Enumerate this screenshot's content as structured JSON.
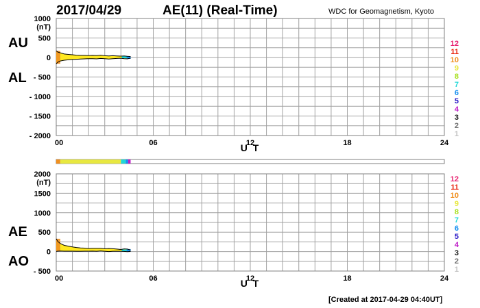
{
  "header": {
    "date": "2017/04/29",
    "index_title": "AE(11) (Real-Time)",
    "source": "WDC for Geomagnetism, Kyoto"
  },
  "footer": {
    "created": "[Created at 2017-04-29 04:40UT]"
  },
  "colors": {
    "level_12": "#e8206e",
    "level_11": "#e8200a",
    "level_10": "#f09020",
    "level_9": "#e8e840",
    "level_8": "#a8e020",
    "level_7": "#20d8d8",
    "level_6": "#1890f0",
    "level_5": "#3020c8",
    "level_4": "#c020c8",
    "level_3": "#202020",
    "level_2": "#707070",
    "level_1": "#c0c0c0",
    "fill": "#ffe820",
    "grid": "#a0a0a0"
  },
  "chart_data": [
    {
      "type": "area",
      "name": "AU/AL",
      "side_labels": [
        "AU",
        "AL"
      ],
      "ylabel": "(nT)",
      "xlabel": "U T",
      "xlim": [
        0,
        24
      ],
      "ylim": [
        -2000,
        1000
      ],
      "x_ticks": [
        "00",
        "06",
        "12",
        "18",
        "24"
      ],
      "y_ticks": [
        "1000",
        "500",
        "0",
        "- 500",
        "- 1000",
        "- 1500",
        "- 2000"
      ],
      "y_tick_values": [
        1000,
        500,
        0,
        -500,
        -1000,
        -1500,
        -2000
      ],
      "grid": true,
      "x": [
        0,
        0.1,
        0.25,
        0.5,
        0.75,
        1.0,
        1.25,
        1.5,
        1.75,
        2.0,
        2.25,
        2.5,
        2.75,
        3.0,
        3.25,
        3.5,
        3.75,
        4.0,
        4.2,
        4.4,
        4.6
      ],
      "series": [
        {
          "name": "AU",
          "values": [
            170,
            140,
            120,
            90,
            80,
            70,
            60,
            55,
            55,
            50,
            55,
            50,
            60,
            45,
            40,
            45,
            40,
            35,
            40,
            30,
            25
          ]
        },
        {
          "name": "AL",
          "values": [
            -160,
            -120,
            -90,
            -70,
            -60,
            -50,
            -45,
            -40,
            -35,
            -30,
            -30,
            -35,
            -25,
            -30,
            -40,
            -30,
            -25,
            -20,
            -30,
            -35,
            -15
          ]
        }
      ],
      "level_bar": [
        {
          "start": 0,
          "end": 0.25,
          "level": 10
        },
        {
          "start": 0.25,
          "end": 4.0,
          "level": 9
        },
        {
          "start": 4.0,
          "end": 4.3,
          "level": 7
        },
        {
          "start": 4.3,
          "end": 4.45,
          "level": 6
        },
        {
          "start": 4.45,
          "end": 4.6,
          "level": 4
        }
      ],
      "legend": [
        "12",
        "11",
        "10",
        "9",
        "8",
        "7",
        "6",
        "5",
        "4",
        "3",
        "2",
        "1"
      ]
    },
    {
      "type": "area",
      "name": "AE/AO",
      "side_labels": [
        "AE",
        "AO"
      ],
      "ylabel": "(nT)",
      "xlabel": "U T",
      "xlim": [
        0,
        24
      ],
      "ylim": [
        -500,
        2000
      ],
      "x_ticks": [
        "00",
        "06",
        "12",
        "18",
        "24"
      ],
      "y_ticks": [
        "2000",
        "1500",
        "1000",
        "500",
        "0",
        "- 500"
      ],
      "y_tick_values": [
        2000,
        1500,
        1000,
        500,
        0,
        -500
      ],
      "grid": true,
      "x": [
        0,
        0.1,
        0.25,
        0.5,
        0.75,
        1.0,
        1.25,
        1.5,
        1.75,
        2.0,
        2.25,
        2.5,
        2.75,
        3.0,
        3.25,
        3.5,
        3.75,
        4.0,
        4.2,
        4.4,
        4.6
      ],
      "series": [
        {
          "name": "AE",
          "values": [
            330,
            260,
            210,
            160,
            140,
            120,
            105,
            95,
            90,
            80,
            85,
            85,
            85,
            75,
            80,
            75,
            65,
            55,
            70,
            65,
            40
          ]
        },
        {
          "name": "AO",
          "values": [
            5,
            10,
            15,
            10,
            10,
            10,
            8,
            8,
            10,
            10,
            12,
            8,
            18,
            8,
            0,
            8,
            8,
            8,
            5,
            -3,
            5
          ]
        }
      ],
      "legend": [
        "12",
        "11",
        "10",
        "9",
        "8",
        "7",
        "6",
        "5",
        "4",
        "3",
        "2",
        "1"
      ]
    }
  ]
}
